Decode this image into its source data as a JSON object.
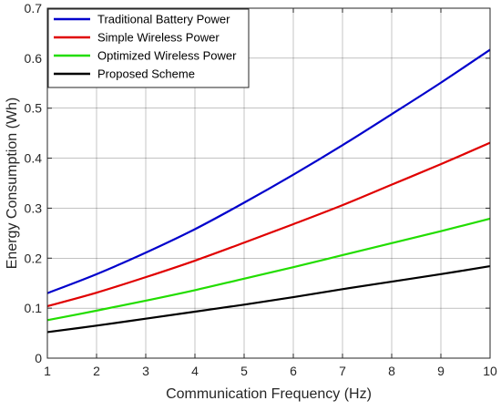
{
  "chart_data": {
    "type": "line",
    "title": "",
    "xlabel": "Communication Frequency (Hz)",
    "ylabel": "Energy Consumption (Wh)",
    "xlim": [
      1,
      10
    ],
    "ylim": [
      0,
      0.7
    ],
    "x_ticks": [
      1,
      2,
      3,
      4,
      5,
      6,
      7,
      8,
      9,
      10
    ],
    "y_ticks": [
      0,
      0.1,
      0.2,
      0.3,
      0.4,
      0.5,
      0.6,
      0.7
    ],
    "x_tick_labels": [
      "1",
      "2",
      "3",
      "4",
      "5",
      "6",
      "7",
      "8",
      "9",
      "10"
    ],
    "y_tick_labels": [
      "0",
      "0.1",
      "0.2",
      "0.3",
      "0.4",
      "0.5",
      "0.6",
      "0.7"
    ],
    "grid": true,
    "legend_position": "top-left",
    "x": [
      1,
      2,
      3,
      4,
      5,
      6,
      7,
      8,
      9,
      10
    ],
    "series": [
      {
        "name": "Traditional Battery Power",
        "color": "#0000CC",
        "values": [
          0.13,
          0.168,
          0.211,
          0.258,
          0.311,
          0.367,
          0.426,
          0.488,
          0.551,
          0.617
        ]
      },
      {
        "name": "Simple Wireless Power",
        "color": "#E00000",
        "values": [
          0.104,
          0.131,
          0.162,
          0.195,
          0.231,
          0.268,
          0.306,
          0.347,
          0.388,
          0.431
        ]
      },
      {
        "name": "Optimized Wireless Power",
        "color": "#22DD00",
        "values": [
          0.076,
          0.095,
          0.115,
          0.136,
          0.159,
          0.182,
          0.206,
          0.23,
          0.254,
          0.279
        ]
      },
      {
        "name": "Proposed Scheme",
        "color": "#000000",
        "values": [
          0.052,
          0.065,
          0.079,
          0.093,
          0.107,
          0.122,
          0.138,
          0.153,
          0.168,
          0.184
        ]
      }
    ]
  }
}
